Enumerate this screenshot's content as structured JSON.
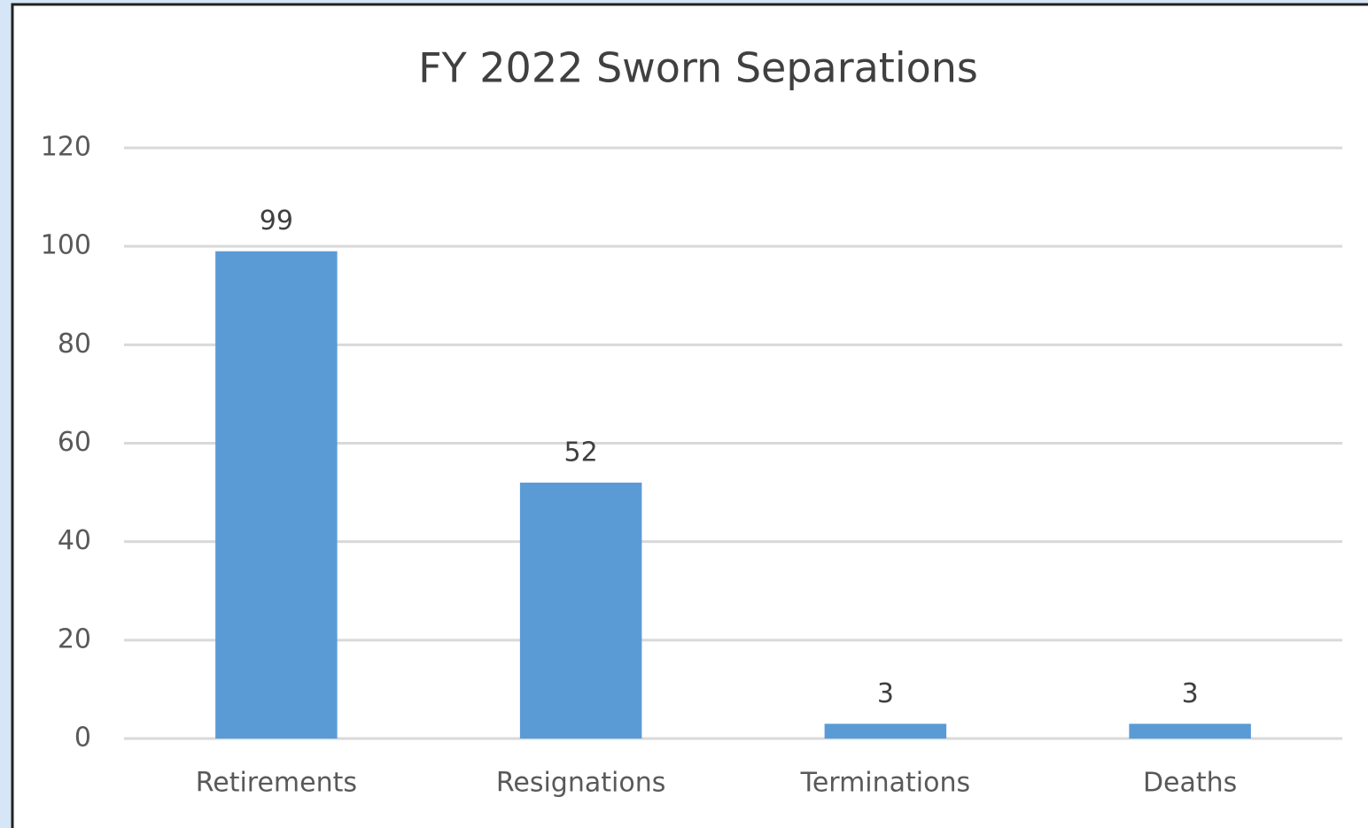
{
  "chart_data": {
    "type": "bar",
    "title": "FY 2022 Sworn Separations",
    "categories": [
      "Retirements",
      "Resignations",
      "Terminations",
      "Deaths"
    ],
    "values": [
      99,
      52,
      3,
      3
    ],
    "color": "#5b9bd5",
    "ylim": [
      0,
      120
    ],
    "yticks": [
      0,
      20,
      40,
      60,
      80,
      100,
      120
    ],
    "grid": true
  }
}
